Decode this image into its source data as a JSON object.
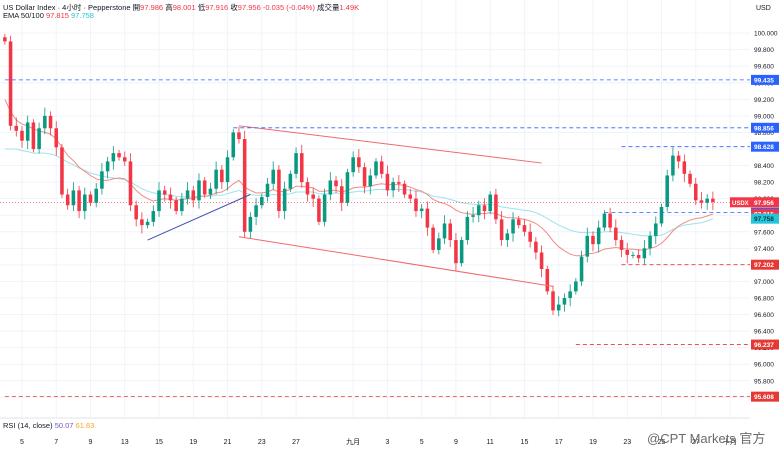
{
  "header": {
    "symbol": "US Dollar Index · 4小时 · Pepperstone",
    "open_label": "開",
    "open": "97.986",
    "high_label": "高",
    "high": "98.001",
    "low_label": "低",
    "low": "97.916",
    "close_label": "收",
    "close": "97.956",
    "change": "-0.035 (-0.04%)",
    "volume_label": "成交量",
    "volume": "1.49K"
  },
  "ema_legend": {
    "label": "EMA 50/100",
    "v1": "97.815",
    "v2": "97.758"
  },
  "rsi_legend": {
    "label": "RSI (14, close)",
    "v1": "50.07",
    "v2": "61.63"
  },
  "currency": "USD",
  "watermark": "@CPT Markets 官方",
  "colors": {
    "up": "#089981",
    "down": "#f23645",
    "ema50": "#f28b82",
    "ema100": "#9be3ee",
    "channel": "#f06a6a",
    "trend_up": "#3f51b5",
    "level": "#2962ff",
    "support": "#e53935"
  },
  "chart_data": {
    "type": "candlestick",
    "y_range": [
      95.35,
      100.4
    ],
    "y_ticks": [
      "100.000",
      "99.800",
      "99.600",
      "99.400",
      "99.200",
      "99.000",
      "98.800",
      "98.600",
      "98.400",
      "98.200",
      "98.000",
      "97.800",
      "97.600",
      "97.400",
      "97.200",
      "97.000",
      "96.800",
      "96.600",
      "96.400",
      "96.200",
      "96.000",
      "95.800",
      "95.600"
    ],
    "x_ticks": [
      {
        "label": "5",
        "i": 3
      },
      {
        "label": "7",
        "i": 9
      },
      {
        "label": "9",
        "i": 15
      },
      {
        "label": "13",
        "i": 21
      },
      {
        "label": "15",
        "i": 27
      },
      {
        "label": "19",
        "i": 33
      },
      {
        "label": "21",
        "i": 39
      },
      {
        "label": "23",
        "i": 45
      },
      {
        "label": "27",
        "i": 51
      },
      {
        "label": "九月",
        "i": 61
      },
      {
        "label": "3",
        "i": 67
      },
      {
        "label": "5",
        "i": 73
      },
      {
        "label": "9",
        "i": 79
      },
      {
        "label": "11",
        "i": 85
      },
      {
        "label": "15",
        "i": 91
      },
      {
        "label": "17",
        "i": 97
      },
      {
        "label": "19",
        "i": 103
      },
      {
        "label": "23",
        "i": 109
      },
      {
        "label": "25",
        "i": 115
      },
      {
        "label": "27",
        "i": 121
      },
      {
        "label": "十月",
        "i": 127
      }
    ],
    "x_count": 131,
    "price_levels": [
      {
        "value": 99.435,
        "label": "99.435",
        "style": "blue",
        "from_i": 0
      },
      {
        "value": 98.856,
        "label": "98.856",
        "style": "blue",
        "from_i": 40
      },
      {
        "value": 98.628,
        "label": "98.628",
        "style": "blue",
        "from_i": 108
      },
      {
        "value": 97.831,
        "label": "97.831",
        "style": "blue",
        "from_i": 105
      },
      {
        "value": 97.202,
        "label": "97.202",
        "style": "red",
        "from_i": 108
      },
      {
        "value": 96.237,
        "label": "96.237",
        "style": "red",
        "from_i": 100
      },
      {
        "value": 95.608,
        "label": "95.608",
        "style": "red",
        "from_i": 0
      }
    ],
    "current": {
      "value": 97.956,
      "label": "97.956",
      "symbol": "USDX"
    },
    "ema_tags": [
      {
        "value": 97.815,
        "label": "97.815",
        "kind": "ema50"
      },
      {
        "value": 97.758,
        "label": "97.758",
        "kind": "ema100"
      }
    ],
    "lines": [
      {
        "kind": "channel",
        "from": [
          41,
          98.88
        ],
        "to": [
          94,
          98.43
        ]
      },
      {
        "kind": "channel",
        "from": [
          41,
          97.54
        ],
        "to": [
          96,
          96.94
        ]
      },
      {
        "kind": "trend_up",
        "from": [
          25,
          97.5
        ],
        "to": [
          43,
          98.05
        ]
      }
    ],
    "closes": [
      99.9,
      98.88,
      98.82,
      98.7,
      98.92,
      98.6,
      98.85,
      99.0,
      98.85,
      98.62,
      98.05,
      97.92,
      98.1,
      97.85,
      98.05,
      97.95,
      98.12,
      98.33,
      98.45,
      98.55,
      98.5,
      98.45,
      97.92,
      97.75,
      97.68,
      97.72,
      97.85,
      98.1,
      98.05,
      97.98,
      97.85,
      98.0,
      98.1,
      97.98,
      98.22,
      98.05,
      98.12,
      98.35,
      98.2,
      98.5,
      98.8,
      98.72,
      97.6,
      97.78,
      97.92,
      98.02,
      98.18,
      98.35,
      97.85,
      98.12,
      98.3,
      98.55,
      98.2,
      98.05,
      98.0,
      97.72,
      98.05,
      98.22,
      98.15,
      97.95,
      98.32,
      98.5,
      98.38,
      98.15,
      98.28,
      98.45,
      98.3,
      98.1,
      98.2,
      98.18,
      98.05,
      98.0,
      97.85,
      97.88,
      97.65,
      97.38,
      97.52,
      97.7,
      97.5,
      97.22,
      97.5,
      97.78,
      97.8,
      97.92,
      97.85,
      98.05,
      97.75,
      97.5,
      97.58,
      97.75,
      97.68,
      97.6,
      97.48,
      97.35,
      97.15,
      96.88,
      96.65,
      96.72,
      96.8,
      96.88,
      97.0,
      97.3,
      97.55,
      97.45,
      97.65,
      97.82,
      97.65,
      97.5,
      97.38,
      97.32,
      97.32,
      97.28,
      97.4,
      97.55,
      97.7,
      97.9,
      98.28,
      98.52,
      98.45,
      98.3,
      98.18,
      97.98,
      97.95,
      98.0,
      97.96
    ],
    "ema50": [
      99.2,
      99.05,
      98.95,
      98.9,
      98.88,
      98.84,
      98.82,
      98.8,
      98.78,
      98.72,
      98.62,
      98.52,
      98.46,
      98.38,
      98.33,
      98.28,
      98.24,
      98.22,
      98.22,
      98.24,
      98.25,
      98.24,
      98.18,
      98.1,
      98.04,
      98.0,
      97.97,
      97.99,
      98.0,
      97.99,
      97.98,
      97.99,
      98.0,
      98.0,
      98.03,
      98.03,
      98.04,
      98.07,
      98.08,
      98.12,
      98.18,
      98.22,
      98.14,
      98.1,
      98.07,
      98.07,
      98.08,
      98.11,
      98.08,
      98.09,
      98.11,
      98.15,
      98.15,
      98.14,
      98.13,
      98.09,
      98.09,
      98.1,
      98.1,
      98.08,
      98.1,
      98.13,
      98.14,
      98.14,
      98.15,
      98.17,
      98.18,
      98.17,
      98.17,
      98.17,
      98.16,
      98.14,
      98.11,
      98.09,
      98.05,
      97.99,
      97.96,
      97.94,
      97.91,
      97.86,
      97.83,
      97.82,
      97.81,
      97.82,
      97.82,
      97.83,
      97.82,
      97.79,
      97.77,
      97.77,
      97.76,
      97.75,
      97.73,
      97.7,
      97.65,
      97.58,
      97.49,
      97.42,
      97.37,
      97.33,
      97.31,
      97.31,
      97.33,
      97.34,
      97.36,
      97.39,
      97.4,
      97.41,
      97.4,
      97.39,
      97.39,
      97.38,
      97.38,
      97.4,
      97.42,
      97.46,
      97.53,
      97.61,
      97.67,
      97.71,
      97.74,
      97.76,
      97.77,
      97.79,
      97.815
    ],
    "ema100": [
      98.6,
      98.6,
      98.6,
      98.58,
      98.57,
      98.55,
      98.55,
      98.55,
      98.54,
      98.52,
      98.48,
      98.44,
      98.41,
      98.37,
      98.34,
      98.31,
      98.29,
      98.27,
      98.26,
      98.25,
      98.24,
      98.23,
      98.2,
      98.16,
      98.12,
      98.09,
      98.07,
      98.06,
      98.05,
      98.04,
      98.03,
      98.02,
      98.02,
      98.02,
      98.03,
      98.03,
      98.03,
      98.04,
      98.04,
      98.06,
      98.08,
      98.1,
      98.07,
      98.05,
      98.04,
      98.04,
      98.04,
      98.05,
      98.04,
      98.05,
      98.06,
      98.08,
      98.08,
      98.08,
      98.08,
      98.06,
      98.06,
      98.06,
      98.07,
      98.06,
      98.07,
      98.08,
      98.09,
      98.09,
      98.1,
      98.11,
      98.11,
      98.11,
      98.11,
      98.11,
      98.11,
      98.1,
      98.09,
      98.08,
      98.06,
      98.03,
      98.02,
      98.01,
      97.99,
      97.97,
      97.95,
      97.94,
      97.93,
      97.93,
      97.93,
      97.93,
      97.92,
      97.9,
      97.89,
      97.88,
      97.87,
      97.86,
      97.85,
      97.83,
      97.8,
      97.76,
      97.72,
      97.68,
      97.65,
      97.62,
      97.6,
      97.59,
      97.59,
      97.59,
      97.59,
      97.6,
      97.6,
      97.6,
      97.59,
      97.58,
      97.57,
      97.56,
      97.55,
      97.55,
      97.55,
      97.56,
      97.59,
      97.63,
      97.66,
      97.68,
      97.69,
      97.7,
      97.71,
      97.73,
      97.758
    ]
  }
}
